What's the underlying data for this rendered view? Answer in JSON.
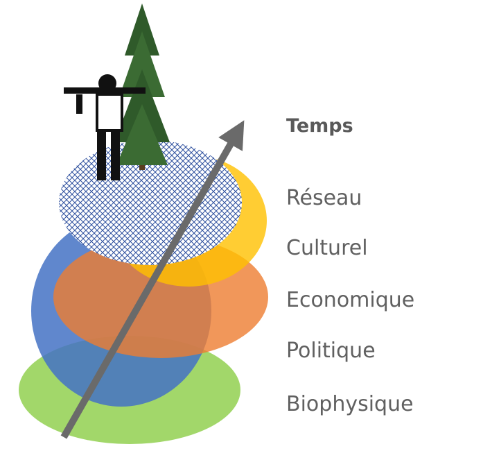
{
  "heading": "Temps",
  "layers": [
    "Réseau",
    "Culturel",
    "Economique",
    "Politique",
    "Biophysique"
  ]
}
